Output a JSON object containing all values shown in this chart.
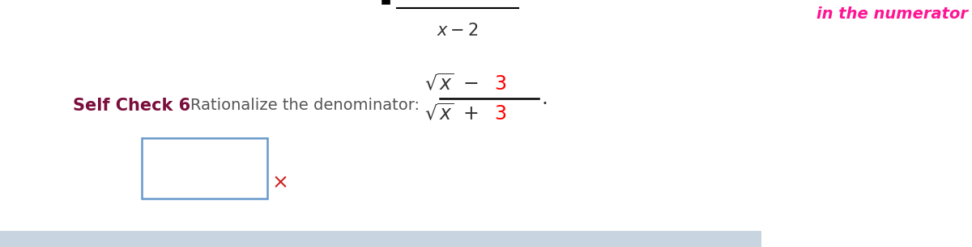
{
  "bg_color": "#ffffff",
  "self_check_label": "Self Check 6",
  "self_check_color": "#7b0d3c",
  "instruction_text": "Rationalize the denominator:",
  "instruction_color": "#555555",
  "top_right_text": "in the numerator",
  "top_right_color": "#ff1493",
  "box_color": "#6699cc",
  "x_mark_color": "#cc2222",
  "bottom_bar_color": "#c8d4e0",
  "fig_width": 12.0,
  "fig_height": 3.06
}
